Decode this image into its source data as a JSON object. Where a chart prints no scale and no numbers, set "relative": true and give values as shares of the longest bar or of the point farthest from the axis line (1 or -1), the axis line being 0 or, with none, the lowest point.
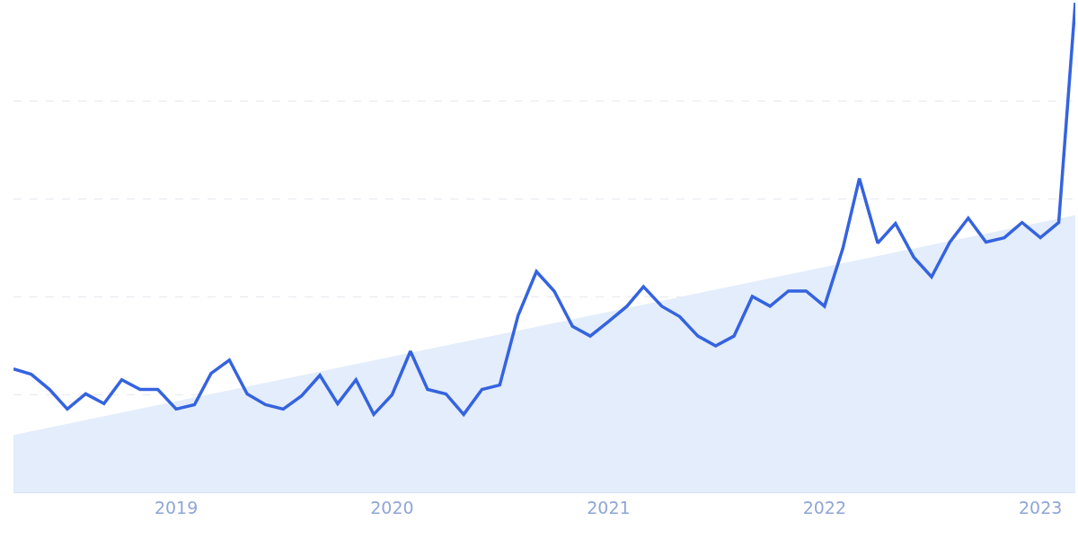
{
  "chart_data": {
    "type": "line",
    "relative": true,
    "x": [
      "2018-04",
      "2018-05",
      "2018-06",
      "2018-07",
      "2018-08",
      "2018-09",
      "2018-10",
      "2018-11",
      "2018-12",
      "2019-01",
      "2019-02",
      "2019-03",
      "2019-04",
      "2019-05",
      "2019-06",
      "2019-07",
      "2019-08",
      "2019-09",
      "2019-10",
      "2019-11",
      "2019-12",
      "2020-01",
      "2020-02",
      "2020-03",
      "2020-04",
      "2020-05",
      "2020-06",
      "2020-07",
      "2020-08",
      "2020-09",
      "2020-10",
      "2020-11",
      "2020-12",
      "2021-01",
      "2021-02",
      "2021-03",
      "2021-04",
      "2021-05",
      "2021-06",
      "2021-07",
      "2021-08",
      "2021-09",
      "2021-10",
      "2021-11",
      "2021-12",
      "2022-01",
      "2022-02",
      "2022-03",
      "2022-04",
      "2022-05",
      "2022-06",
      "2022-07",
      "2022-08",
      "2022-09",
      "2022-10",
      "2022-11",
      "2022-12",
      "2023-01",
      "2023-02",
      "2023-03"
    ],
    "series": [
      {
        "type": "area",
        "color": "#e3edfb",
        "x": [
          "2018-04",
          "2023-03"
        ],
        "values": [
          0.117,
          0.566
        ]
      },
      {
        "color": "#3563e0",
        "values": [
          0.252,
          0.241,
          0.21,
          0.17,
          0.201,
          0.181,
          0.23,
          0.21,
          0.21,
          0.17,
          0.179,
          0.243,
          0.27,
          0.201,
          0.179,
          0.17,
          0.197,
          0.239,
          0.181,
          0.23,
          0.159,
          0.199,
          0.288,
          0.21,
          0.201,
          0.159,
          0.21,
          0.219,
          0.361,
          0.451,
          0.411,
          0.339,
          0.319,
          0.349,
          0.38,
          0.42,
          0.38,
          0.359,
          0.319,
          0.299,
          0.319,
          0.4,
          0.38,
          0.411,
          0.411,
          0.38,
          0.498,
          0.641,
          0.509,
          0.549,
          0.48,
          0.44,
          0.511,
          0.56,
          0.511,
          0.52,
          0.551,
          0.52,
          0.551,
          1
        ]
      }
    ],
    "xlim": [
      "2018-04",
      "2023-03"
    ],
    "xticks": [
      {
        "value": "2019",
        "label": "2019"
      },
      {
        "value": "2020",
        "label": "2020"
      },
      {
        "value": "2021",
        "label": "2021"
      },
      {
        "value": "2022",
        "label": "2022"
      },
      {
        "value": "2023",
        "label": "2023"
      }
    ],
    "grid": "y",
    "legend": false,
    "marker": "none",
    "line_style": "solid"
  }
}
